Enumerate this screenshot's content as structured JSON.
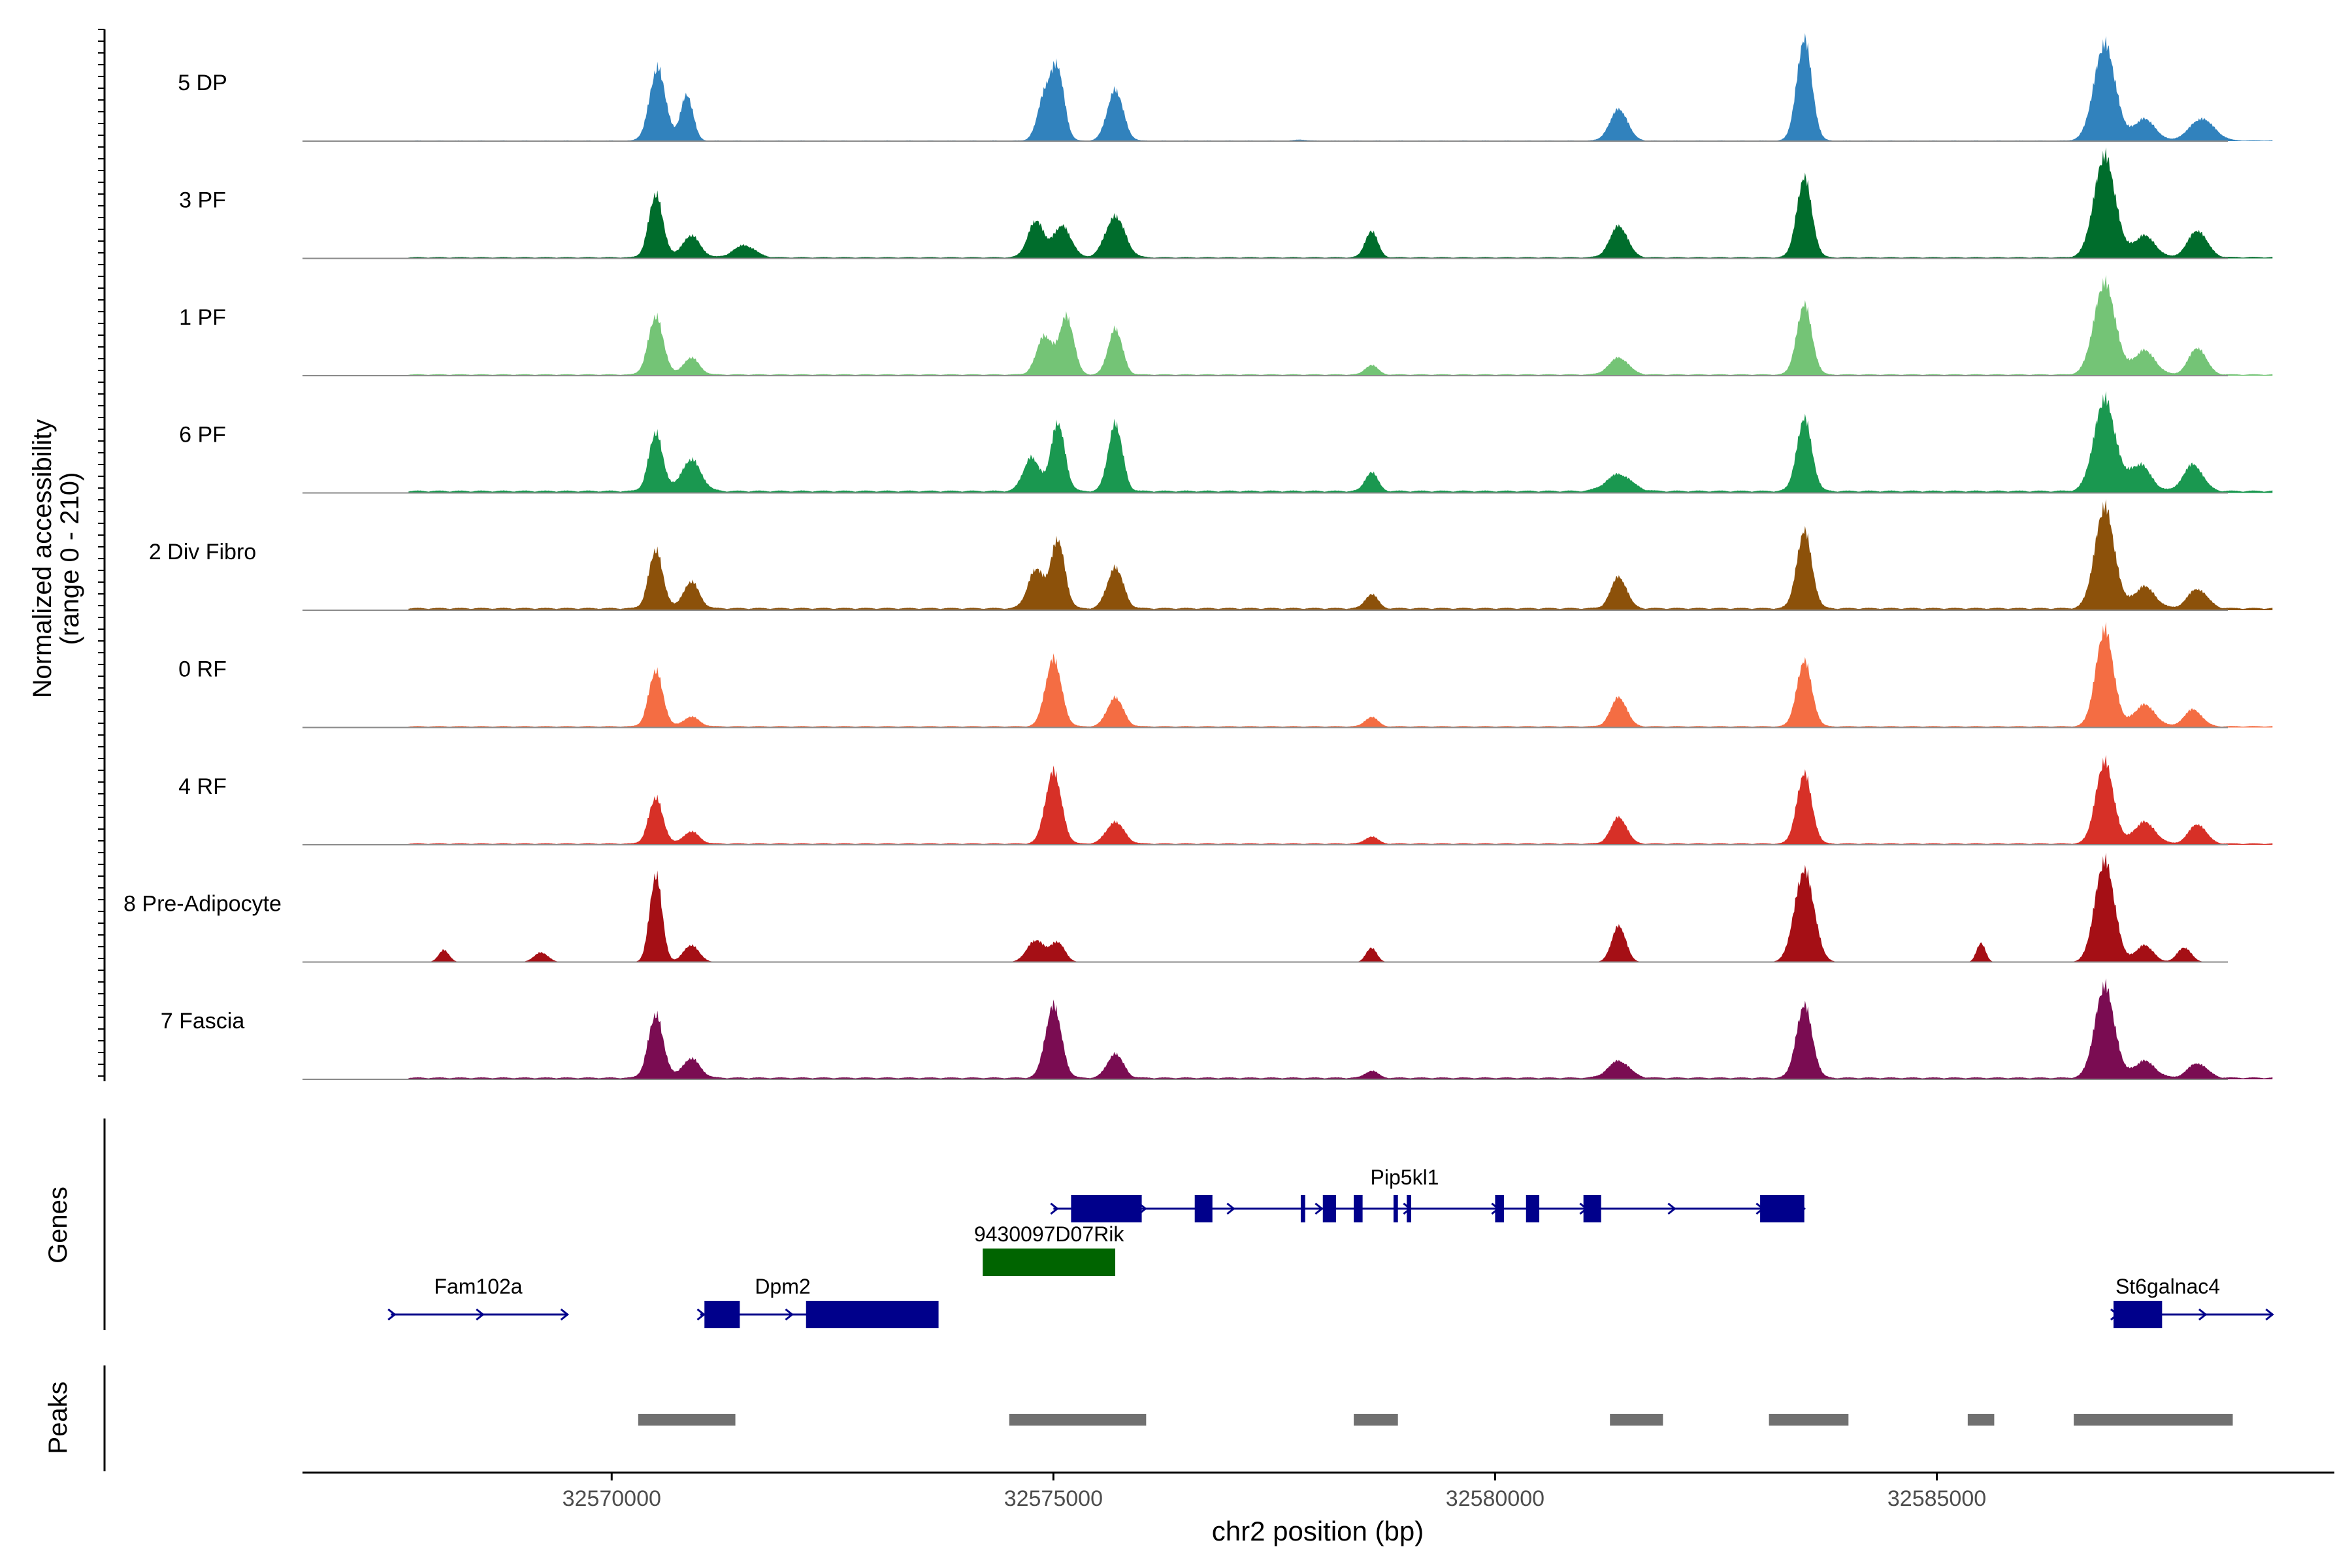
{
  "chart_data": {
    "type": "area",
    "title": "",
    "ylabel_line1": "Normalized accessibility",
    "ylabel_line2": "(range 0 - 210)",
    "xlabel": "chr2 position (bp)",
    "xlim": [
      32566500,
      32589500
    ],
    "x_ticks": [
      "32570000",
      "32575000",
      "32580000",
      "32585000"
    ],
    "x_tick_values": [
      32570000,
      32575000,
      32580000,
      32585000
    ],
    "ylim": [
      0,
      210
    ],
    "tracks": [
      {
        "name": "5 DP",
        "color": "#3182bd",
        "baseline": 1.5,
        "peaks": [
          [
            32570520,
            150,
            90
          ],
          [
            32570850,
            95,
            70
          ],
          [
            32574900,
            90,
            80
          ],
          [
            32575050,
            140,
            75
          ],
          [
            32575700,
            105,
            90
          ],
          [
            32577800,
            2,
            60
          ],
          [
            32581400,
            65,
            100
          ],
          [
            32583500,
            210,
            85
          ],
          [
            32586900,
            200,
            120
          ],
          [
            32587350,
            45,
            120
          ],
          [
            32588000,
            45,
            140
          ]
        ]
      },
      {
        "name": "3 PF",
        "color": "#006d2c",
        "baseline": 3,
        "peaks": [
          [
            32570500,
            130,
            80
          ],
          [
            32570900,
            45,
            100
          ],
          [
            32571500,
            25,
            120
          ],
          [
            32574800,
            75,
            90
          ],
          [
            32575100,
            65,
            100
          ],
          [
            32575700,
            85,
            110
          ],
          [
            32578600,
            55,
            70
          ],
          [
            32581400,
            65,
            100
          ],
          [
            32583500,
            165,
            85
          ],
          [
            32586900,
            210,
            120
          ],
          [
            32587350,
            45,
            120
          ],
          [
            32587950,
            55,
            110
          ]
        ]
      },
      {
        "name": "1 PF",
        "color": "#74c476",
        "baseline": 3,
        "peaks": [
          [
            32570500,
            120,
            85
          ],
          [
            32570900,
            35,
            90
          ],
          [
            32574900,
            80,
            90
          ],
          [
            32575150,
            120,
            80
          ],
          [
            32575700,
            95,
            80
          ],
          [
            32578600,
            20,
            70
          ],
          [
            32581400,
            35,
            110
          ],
          [
            32583500,
            145,
            85
          ],
          [
            32586900,
            190,
            120
          ],
          [
            32587350,
            50,
            120
          ],
          [
            32587950,
            55,
            100
          ]
        ]
      },
      {
        "name": "6 PF",
        "color": "#1a9850",
        "baseline": 5,
        "peaks": [
          [
            32570500,
            120,
            80
          ],
          [
            32570900,
            65,
            110
          ],
          [
            32574750,
            70,
            90
          ],
          [
            32575050,
            140,
            80
          ],
          [
            32575700,
            140,
            80
          ],
          [
            32578600,
            40,
            70
          ],
          [
            32581400,
            35,
            140
          ],
          [
            32583500,
            150,
            85
          ],
          [
            32586900,
            190,
            120
          ],
          [
            32587300,
            55,
            120
          ],
          [
            32587900,
            55,
            110
          ]
        ]
      },
      {
        "name": "2 Div Fibro",
        "color": "#8c510a",
        "baseline": 5,
        "peaks": [
          [
            32570500,
            120,
            80
          ],
          [
            32570900,
            55,
            90
          ],
          [
            32574800,
            80,
            90
          ],
          [
            32575050,
            140,
            80
          ],
          [
            32575700,
            85,
            90
          ],
          [
            32578600,
            30,
            70
          ],
          [
            32581400,
            65,
            90
          ],
          [
            32583500,
            160,
            85
          ],
          [
            32586900,
            210,
            110
          ],
          [
            32587350,
            45,
            120
          ],
          [
            32587950,
            40,
            110
          ]
        ]
      },
      {
        "name": "0 RF",
        "color": "#f46d43",
        "baseline": 3,
        "peaks": [
          [
            32570500,
            115,
            80
          ],
          [
            32570900,
            20,
            90
          ],
          [
            32575000,
            140,
            90
          ],
          [
            32575700,
            60,
            90
          ],
          [
            32578600,
            20,
            70
          ],
          [
            32581400,
            60,
            90
          ],
          [
            32583500,
            135,
            85
          ],
          [
            32586900,
            200,
            100
          ],
          [
            32587350,
            45,
            120
          ],
          [
            32587900,
            35,
            100
          ]
        ]
      },
      {
        "name": "4 RF",
        "color": "#d73027",
        "baseline": 3,
        "peaks": [
          [
            32570500,
            95,
            80
          ],
          [
            32570900,
            25,
            90
          ],
          [
            32575000,
            150,
            90
          ],
          [
            32575700,
            45,
            100
          ],
          [
            32578600,
            15,
            70
          ],
          [
            32581400,
            55,
            90
          ],
          [
            32583500,
            145,
            85
          ],
          [
            32586900,
            170,
            100
          ],
          [
            32587350,
            45,
            120
          ],
          [
            32587950,
            40,
            100
          ]
        ]
      },
      {
        "name": "8 Pre-Adipocyte",
        "color": "#a50f15",
        "baseline": 0,
        "peaks": [
          [
            32568100,
            25,
            60
          ],
          [
            32569200,
            20,
            80
          ],
          [
            32570500,
            180,
            70
          ],
          [
            32570900,
            35,
            90
          ],
          [
            32574800,
            45,
            100
          ],
          [
            32575050,
            40,
            80
          ],
          [
            32578600,
            30,
            60
          ],
          [
            32581400,
            75,
            80
          ],
          [
            32583500,
            190,
            110
          ],
          [
            32585500,
            40,
            50
          ],
          [
            32586900,
            210,
            110
          ],
          [
            32587350,
            35,
            100
          ],
          [
            32587800,
            30,
            80
          ]
        ]
      },
      {
        "name": "7 Fascia",
        "color": "#7a0c52",
        "baseline": 4,
        "peaks": [
          [
            32570500,
            130,
            85
          ],
          [
            32570900,
            40,
            100
          ],
          [
            32575000,
            150,
            90
          ],
          [
            32575700,
            50,
            90
          ],
          [
            32578600,
            15,
            70
          ],
          [
            32581400,
            35,
            120
          ],
          [
            32583500,
            150,
            90
          ],
          [
            32586900,
            190,
            110
          ],
          [
            32587350,
            35,
            120
          ],
          [
            32587950,
            30,
            110
          ]
        ]
      }
    ],
    "genes_label": "Genes",
    "peaks_label": "Peaks",
    "genes": [
      {
        "name": "Fam102a",
        "row": 1,
        "color": "#00008b",
        "start": 32567500,
        "end": 32569500,
        "exons": []
      },
      {
        "name": "Dpm2",
        "row": 1,
        "color": "#00008b",
        "start": 32571000,
        "end": 32573600,
        "exons": [
          [
            32571050,
            32571450
          ],
          [
            32572200,
            32573700
          ]
        ]
      },
      {
        "name": "9430097D07Rik",
        "row": 2,
        "color": "#006400",
        "start": 32574200,
        "end": 32575700,
        "exons": [
          [
            32574200,
            32575700
          ]
        ]
      },
      {
        "name": "Pip5kl1",
        "row": 3,
        "color": "#00008b",
        "start": 32575000,
        "end": 32583500,
        "exons": [
          [
            32575200,
            32576000
          ],
          [
            32576600,
            32576800
          ],
          [
            32577800,
            32577850
          ],
          [
            32578050,
            32578200
          ],
          [
            32578400,
            32578500
          ],
          [
            32578850,
            32578900
          ],
          [
            32579000,
            32579050
          ],
          [
            32580000,
            32580100
          ],
          [
            32580350,
            32580500
          ],
          [
            32581000,
            32581200
          ],
          [
            32583000,
            32583500
          ]
        ]
      },
      {
        "name": "St6galnac4",
        "row": 1,
        "color": "#00008b",
        "start": 32587000,
        "end": 32588800,
        "exons": [
          [
            32587000,
            32587550
          ]
        ]
      }
    ],
    "peak_regions": [
      [
        32570300,
        32571400
      ],
      [
        32574500,
        32576050
      ],
      [
        32578400,
        32578900
      ],
      [
        32581300,
        32581900
      ],
      [
        32583100,
        32584000
      ],
      [
        32585350,
        32585650
      ],
      [
        32586550,
        32588350
      ]
    ]
  }
}
